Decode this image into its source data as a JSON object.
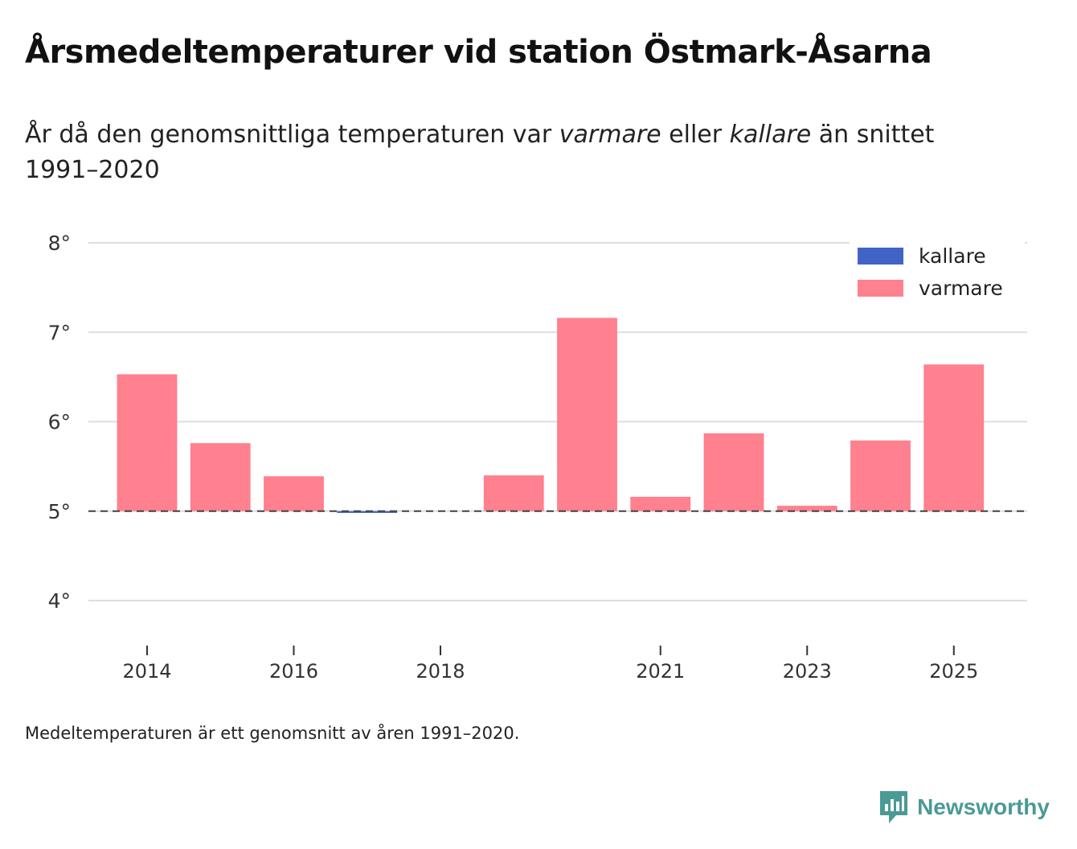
{
  "title": "Årsmedeltemperaturer vid station Östmark-Åsarna",
  "subtitle": {
    "part1": "År då den genomsnittliga temperaturen var ",
    "warmer": "varmare",
    "part2": " eller ",
    "colder": "kallare",
    "part3": " än snittet 1991–2020"
  },
  "note": "Medeltemperaturen är ett genomsnitt av åren 1991–2020.",
  "brand": {
    "name": "Newsworthy",
    "color": "#4a9a96"
  },
  "chart_data": {
    "type": "bar",
    "title": "Årsmedeltemperaturer vid station Östmark-Åsarna",
    "xlabel": "",
    "ylabel": "",
    "baseline": 5.0,
    "ylim": [
      3.5,
      8.1
    ],
    "yticks": [
      4,
      5,
      6,
      7,
      8
    ],
    "ytick_labels": [
      "4°",
      "5°",
      "6°",
      "7°",
      "8°"
    ],
    "xlim": [
      2013.2,
      2026.0
    ],
    "xticks": [
      2014,
      2016,
      2018,
      2021,
      2023,
      2025
    ],
    "xtick_labels": [
      "2014",
      "2016",
      "2018",
      "2021",
      "2023",
      "2025"
    ],
    "grid": true,
    "legend_position": "top-right",
    "colors": {
      "kallare": "#4263c6",
      "varmare": "#ff808e",
      "grid": "#dedede",
      "baseline": "#444444",
      "text": "#333333"
    },
    "legend": [
      {
        "key": "kallare",
        "label": "kallare"
      },
      {
        "key": "varmare",
        "label": "varmare"
      }
    ],
    "series": [
      {
        "name": "Årsmedeltemperatur",
        "points": [
          {
            "x": 2014,
            "value": 6.53,
            "category": "varmare"
          },
          {
            "x": 2015,
            "value": 5.76,
            "category": "varmare"
          },
          {
            "x": 2016,
            "value": 5.39,
            "category": "varmare"
          },
          {
            "x": 2017,
            "value": 4.98,
            "category": "kallare"
          },
          {
            "x": 2019,
            "value": 5.4,
            "category": "varmare"
          },
          {
            "x": 2020,
            "value": 7.16,
            "category": "varmare"
          },
          {
            "x": 2021,
            "value": 5.16,
            "category": "varmare"
          },
          {
            "x": 2022,
            "value": 5.87,
            "category": "varmare"
          },
          {
            "x": 2023,
            "value": 5.06,
            "category": "varmare"
          },
          {
            "x": 2024,
            "value": 5.79,
            "category": "varmare"
          },
          {
            "x": 2025,
            "value": 6.64,
            "category": "varmare"
          }
        ]
      }
    ]
  }
}
